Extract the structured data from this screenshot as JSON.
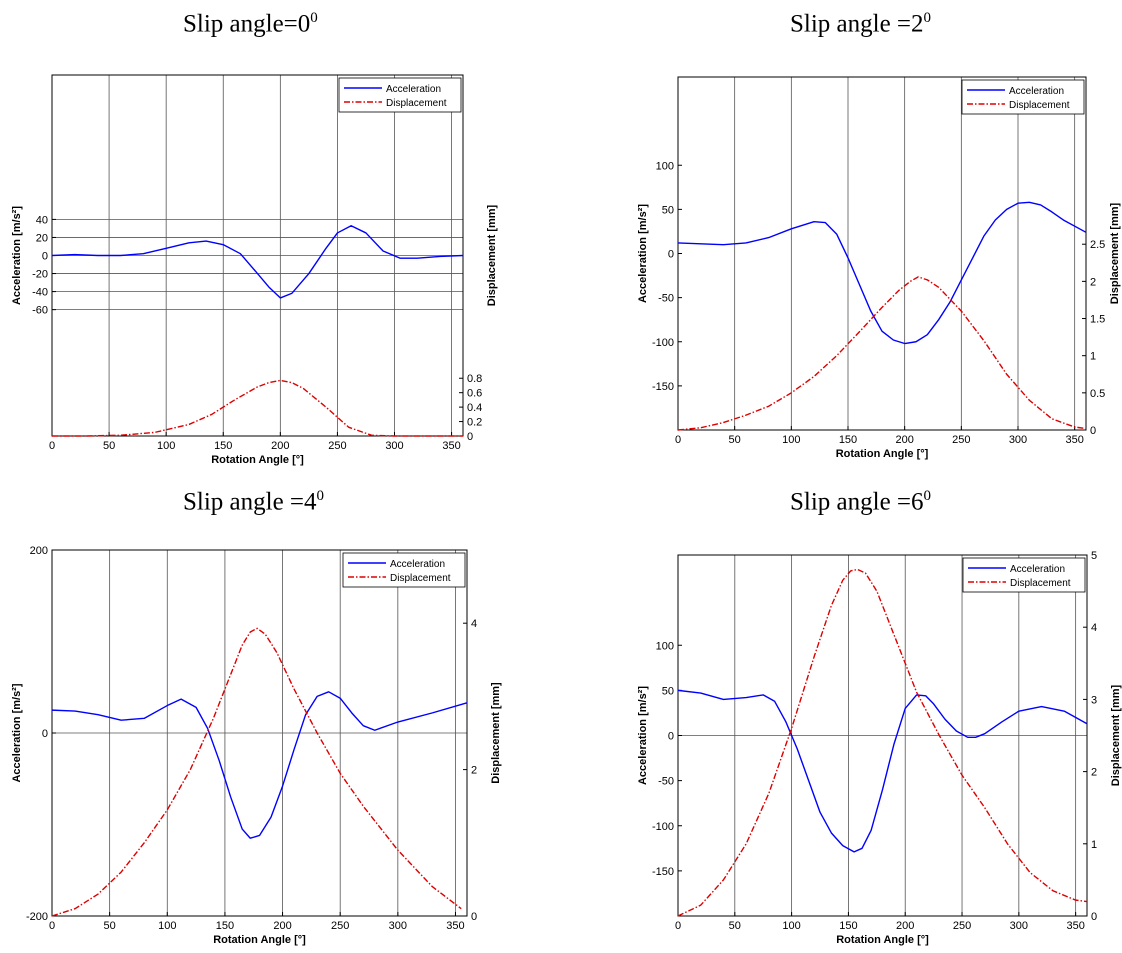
{
  "colors": {
    "acceleration": "#0000FF",
    "displacement": "#DD0000",
    "grid": "#555555",
    "axis": "#000000"
  },
  "chart_data": [
    {
      "type": "line",
      "title": "Slip angle=0",
      "title_sup": "0",
      "xlabel": "Rotation Angle [°]",
      "ylabel_left": "Acceleration [m/s²]",
      "ylabel_right": "Displacement [mm]",
      "xlim": [
        0,
        360
      ],
      "xticks": [
        0,
        50,
        100,
        150,
        200,
        250,
        300,
        350
      ],
      "ylim_left": [
        -200,
        200
      ],
      "yticks_left": [
        -60,
        -40,
        -20,
        0,
        20,
        40
      ],
      "ylim_right": [
        0,
        5
      ],
      "yticks_right": [
        0,
        0.2,
        0.4,
        0.6,
        0.8
      ],
      "hgrid": [
        -60,
        -40,
        -20,
        0,
        20,
        40
      ],
      "legend_location": "top-right",
      "series": [
        {
          "name": "Acceleration",
          "axis": "left",
          "x": [
            0,
            20,
            40,
            60,
            80,
            100,
            120,
            135,
            150,
            165,
            180,
            190,
            200,
            210,
            225,
            240,
            250,
            262,
            275,
            290,
            305,
            320,
            340,
            360
          ],
          "y": [
            0,
            1,
            0,
            0,
            2,
            8,
            14,
            16,
            12,
            2,
            -20,
            -35,
            -47,
            -42,
            -20,
            8,
            25,
            33,
            25,
            5,
            -3,
            -3,
            -1,
            0
          ]
        },
        {
          "name": "Displacement",
          "axis": "right",
          "x": [
            0,
            30,
            60,
            90,
            120,
            140,
            160,
            180,
            190,
            200,
            210,
            220,
            240,
            260,
            280,
            300,
            330,
            360
          ],
          "y": [
            0,
            0,
            0.01,
            0.05,
            0.16,
            0.3,
            0.5,
            0.68,
            0.74,
            0.77,
            0.74,
            0.66,
            0.4,
            0.12,
            0.01,
            0,
            0,
            0
          ]
        }
      ]
    },
    {
      "type": "line",
      "title": "Slip angle =2",
      "title_sup": "0",
      "xlabel": "Rotation Angle [°]",
      "ylabel_left": "Acceleration [m/s²]",
      "ylabel_right": "Displacement [mm]",
      "xlim": [
        0,
        360
      ],
      "xticks": [
        0,
        50,
        100,
        150,
        200,
        250,
        300,
        350
      ],
      "ylim_left": [
        -200,
        200
      ],
      "yticks_left": [
        -150,
        -100,
        -50,
        0,
        50,
        100
      ],
      "ylim_right": [
        0,
        4.75
      ],
      "yticks_right": [
        0,
        0.5,
        1,
        1.5,
        2,
        2.5
      ],
      "hgrid": [],
      "legend_location": "top-right",
      "series": [
        {
          "name": "Acceleration",
          "axis": "left",
          "x": [
            0,
            20,
            40,
            60,
            80,
            100,
            120,
            130,
            140,
            150,
            160,
            170,
            180,
            190,
            200,
            210,
            220,
            230,
            240,
            250,
            260,
            270,
            280,
            290,
            300,
            310,
            320,
            330,
            340,
            360
          ],
          "y": [
            12,
            11,
            10,
            12,
            18,
            28,
            36,
            35,
            22,
            -5,
            -35,
            -65,
            -88,
            -98,
            -102,
            -100,
            -92,
            -75,
            -55,
            -30,
            -5,
            20,
            38,
            50,
            57,
            58,
            55,
            47,
            38,
            24
          ]
        },
        {
          "name": "Displacement",
          "axis": "right",
          "x": [
            0,
            20,
            40,
            60,
            80,
            100,
            120,
            140,
            160,
            180,
            195,
            205,
            212,
            220,
            230,
            250,
            270,
            290,
            310,
            330,
            350,
            360
          ],
          "y": [
            0,
            0.03,
            0.1,
            0.2,
            0.32,
            0.5,
            0.72,
            1.0,
            1.32,
            1.65,
            1.88,
            2.0,
            2.06,
            2.02,
            1.92,
            1.6,
            1.2,
            0.75,
            0.4,
            0.15,
            0.04,
            0.02
          ]
        }
      ]
    },
    {
      "type": "line",
      "title": "Slip angle =4",
      "title_sup": "0",
      "xlabel": "Rotation Angle [°]",
      "ylabel_left": "Acceleration [m/s²]",
      "ylabel_right": "Displacement [mm]",
      "xlim": [
        0,
        360
      ],
      "xticks": [
        0,
        50,
        100,
        150,
        200,
        250,
        300,
        350
      ],
      "ylim_left": [
        -200,
        200
      ],
      "yticks_left": [
        -200,
        0,
        200
      ],
      "ylim_right": [
        0,
        5
      ],
      "yticks_right": [
        0,
        2,
        4
      ],
      "hgrid": [
        0
      ],
      "legend_location": "top-right",
      "series": [
        {
          "name": "Acceleration",
          "axis": "left",
          "x": [
            0,
            20,
            40,
            60,
            80,
            100,
            112,
            125,
            135,
            145,
            155,
            165,
            172,
            180,
            190,
            200,
            210,
            220,
            230,
            240,
            250,
            260,
            270,
            280,
            300,
            330,
            360
          ],
          "y": [
            25,
            24,
            20,
            14,
            16,
            30,
            37,
            28,
            5,
            -30,
            -70,
            -105,
            -115,
            -112,
            -92,
            -58,
            -18,
            20,
            40,
            45,
            38,
            22,
            8,
            3,
            12,
            22,
            33
          ]
        },
        {
          "name": "Displacement",
          "axis": "right",
          "x": [
            0,
            20,
            40,
            60,
            80,
            100,
            120,
            140,
            155,
            165,
            172,
            178,
            185,
            195,
            210,
            230,
            250,
            270,
            300,
            330,
            355
          ],
          "y": [
            0,
            0.1,
            0.3,
            0.6,
            1.0,
            1.45,
            2.0,
            2.7,
            3.3,
            3.7,
            3.88,
            3.93,
            3.85,
            3.6,
            3.1,
            2.5,
            1.95,
            1.5,
            0.9,
            0.4,
            0.1
          ]
        }
      ]
    },
    {
      "type": "line",
      "title": "Slip angle =6",
      "title_sup": "0",
      "xlabel": "Rotation Angle [°]",
      "ylabel_left": "Acceleration [m/s²]",
      "ylabel_right": "Displacement [mm]",
      "xlim": [
        0,
        360
      ],
      "xticks": [
        0,
        50,
        100,
        150,
        200,
        250,
        300,
        350
      ],
      "ylim_left": [
        -200,
        200
      ],
      "yticks_left": [
        -150,
        -100,
        -50,
        0,
        50,
        100
      ],
      "ylim_right": [
        0,
        5
      ],
      "yticks_right": [
        0,
        1,
        2,
        3,
        4,
        5
      ],
      "hgrid": [
        0
      ],
      "legend_location": "top-right",
      "series": [
        {
          "name": "Acceleration",
          "axis": "left",
          "x": [
            0,
            20,
            40,
            60,
            75,
            85,
            95,
            105,
            115,
            125,
            135,
            145,
            155,
            162,
            170,
            180,
            190,
            200,
            210,
            218,
            225,
            235,
            245,
            255,
            262,
            270,
            285,
            300,
            320,
            340,
            360
          ],
          "y": [
            50,
            47,
            40,
            42,
            45,
            38,
            15,
            -15,
            -50,
            -85,
            -108,
            -122,
            -129,
            -125,
            -105,
            -60,
            -10,
            30,
            45,
            44,
            35,
            18,
            5,
            -2,
            -2,
            2,
            15,
            27,
            32,
            27,
            13
          ]
        },
        {
          "name": "Displacement",
          "axis": "right",
          "x": [
            0,
            20,
            40,
            60,
            80,
            100,
            120,
            135,
            145,
            152,
            158,
            165,
            175,
            190,
            210,
            230,
            250,
            270,
            290,
            310,
            330,
            350,
            360
          ],
          "y": [
            0,
            0.15,
            0.5,
            1.0,
            1.7,
            2.6,
            3.6,
            4.3,
            4.65,
            4.78,
            4.8,
            4.75,
            4.5,
            3.9,
            3.1,
            2.5,
            1.95,
            1.5,
            1.0,
            0.6,
            0.35,
            0.22,
            0.2
          ]
        }
      ]
    }
  ]
}
